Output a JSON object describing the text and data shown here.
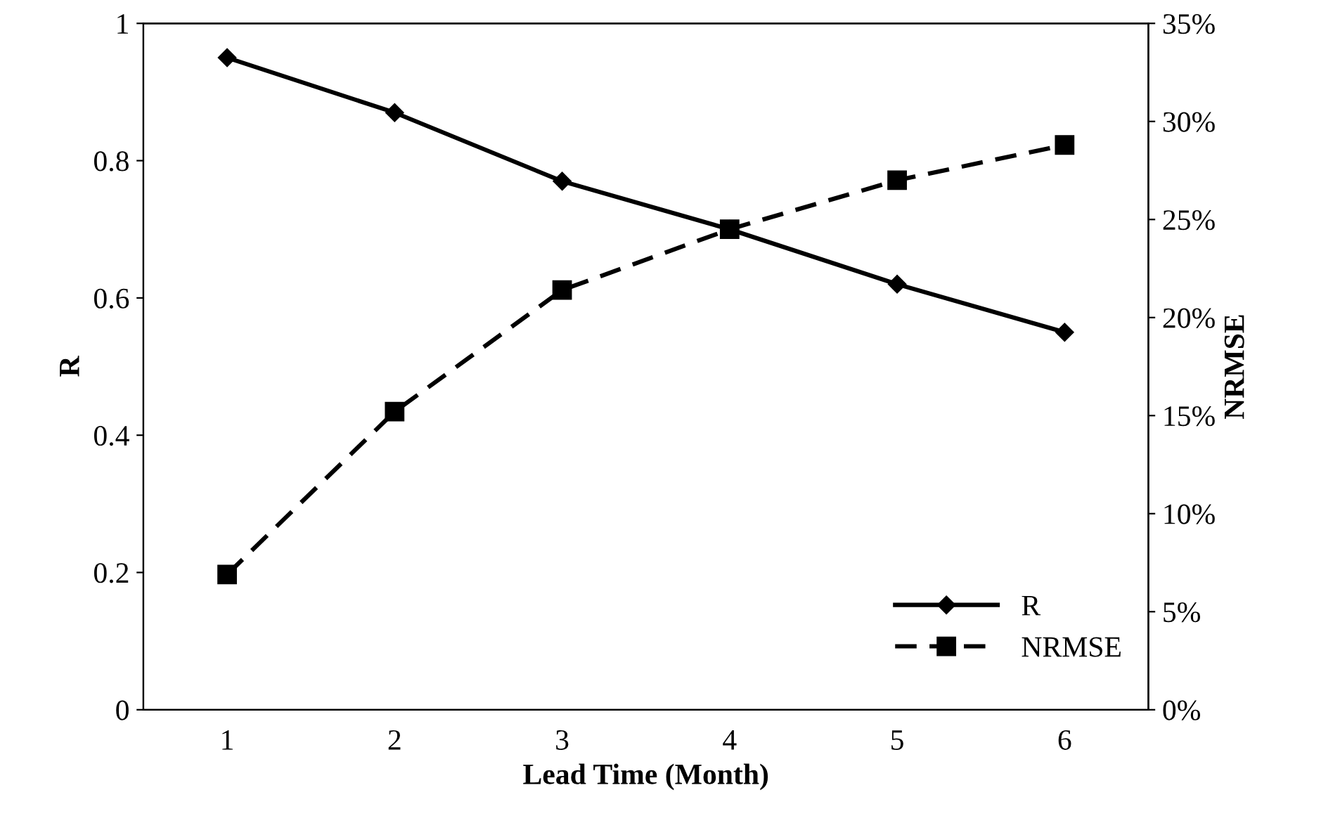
{
  "chart_data": {
    "type": "line",
    "xlabel": "Lead Time (Month)",
    "ylabel": "R",
    "y2label": "NRMSE",
    "categories": [
      "1",
      "2",
      "3",
      "4",
      "5",
      "6"
    ],
    "series": [
      {
        "name": "R",
        "color": "#000000",
        "marker": "diamond",
        "line_style": "solid",
        "values": [
          0.95,
          0.87,
          0.77,
          0.7,
          0.62,
          0.55
        ]
      },
      {
        "name": "NRMSE",
        "color": "#000000",
        "marker": "square",
        "line_style": "dashed",
        "axis": "y2",
        "values": [
          6.9,
          15.2,
          21.4,
          24.5,
          27.0,
          28.8
        ]
      }
    ],
    "ylim": [
      0,
      1
    ],
    "yticks": [
      0,
      0.2,
      0.4,
      0.6,
      0.8,
      1
    ],
    "y2lim": [
      0,
      35
    ],
    "y2ticks": [
      {
        "value": 0,
        "label": "0%"
      },
      {
        "value": 5,
        "label": "5%"
      },
      {
        "value": 10,
        "label": "10%"
      },
      {
        "value": 15,
        "label": "15%"
      },
      {
        "value": 20,
        "label": "20%"
      },
      {
        "value": 25,
        "label": "25%"
      },
      {
        "value": 30,
        "label": "30%"
      },
      {
        "value": 35,
        "label": "35%"
      }
    ],
    "grid": false,
    "legend": "bottom right"
  }
}
